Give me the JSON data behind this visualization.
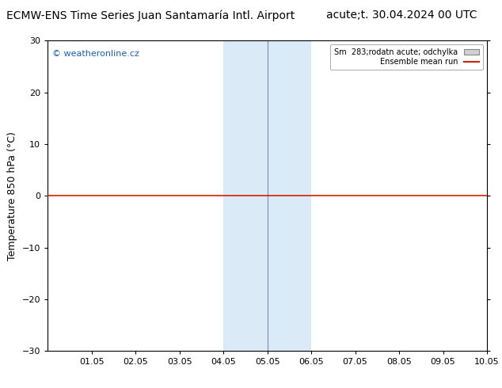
{
  "title_left": "ECMW-ENS Time Series Juan Santamaría Intl. Airport",
  "title_right": "acute;t. 30.04.2024 00 UTC",
  "ylabel": "Temperature 850 hPa (°C)",
  "watermark": "© weatheronline.cz",
  "legend_label1": "Sm  283;rodatn acute; odchylka",
  "legend_label2": "Ensemble mean run",
  "xlim_left": 0.0,
  "xlim_right": 10.0,
  "ylim_bottom": -30,
  "ylim_top": 30,
  "yticks": [
    -30,
    -20,
    -10,
    0,
    10,
    20,
    30
  ],
  "xtick_labels": [
    "01.05",
    "02.05",
    "03.05",
    "04.05",
    "05.05",
    "06.05",
    "07.05",
    "08.05",
    "09.05",
    "10.05"
  ],
  "xtick_positions": [
    1.0,
    2.0,
    3.0,
    4.0,
    5.0,
    6.0,
    7.0,
    8.0,
    9.0,
    10.0
  ],
  "shaded_xmin": 4.0,
  "shaded_xmax": 6.0,
  "shaded_color": "#daeaf6",
  "hline_y": 0,
  "hline_color": "#cc2200",
  "bg_color": "#ffffff",
  "plot_bg_color": "#ffffff",
  "mean_line_color": "#cc2200",
  "spread_fill_color": "#d0d0d0",
  "border_color": "#000000",
  "title_fontsize": 10,
  "tick_fontsize": 8,
  "ylabel_fontsize": 9,
  "watermark_color": "#1a5fa8",
  "vline_x05": 5.0,
  "vline_color": "#aaaacc",
  "vline_border_color": "#8888aa"
}
